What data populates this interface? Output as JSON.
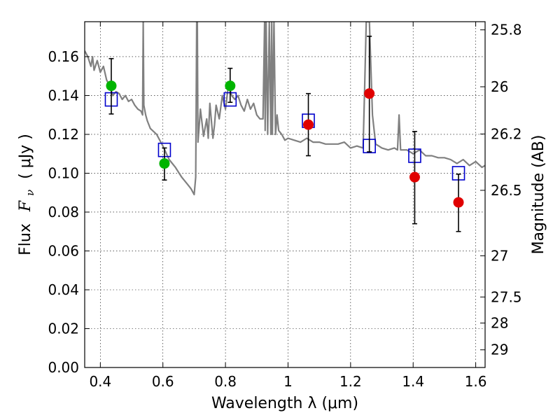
{
  "chart_data": {
    "type": "scatter",
    "xlabel": "Wavelength  λ (μm)",
    "ylabel": "Flux  F_ν  ( μJy )",
    "ylabel_parts": {
      "prefix": "Flux",
      "symbol": "F",
      "subscript": "ν",
      "unit": "( μJy )"
    },
    "y2label": "Magnitude (AB)",
    "xlim": [
      0.35,
      1.63
    ],
    "ylim": [
      0.0,
      0.178
    ],
    "x_ticks": [
      0.4,
      0.6,
      0.8,
      1.0,
      1.2,
      1.4,
      1.6
    ],
    "x_tick_labels": [
      "0.4",
      "0.6",
      "0.8",
      "1",
      "1.2",
      "1.4",
      "1.6"
    ],
    "y_ticks": [
      0.0,
      0.02,
      0.04,
      0.06,
      0.08,
      0.1,
      0.12,
      0.14,
      0.16
    ],
    "y_tick_labels": [
      "0.00",
      "0.02",
      "0.04",
      "0.06",
      "0.08",
      "0.10",
      "0.12",
      "0.14",
      "0.16"
    ],
    "y2_ticks": [
      {
        "flux": 0.1738,
        "label": "25.8"
      },
      {
        "flux": 0.1445,
        "label": "26"
      },
      {
        "flux": 0.1202,
        "label": "26.2"
      },
      {
        "flux": 0.0912,
        "label": "26.5"
      },
      {
        "flux": 0.0575,
        "label": "27"
      },
      {
        "flux": 0.0363,
        "label": "27.5"
      },
      {
        "flux": 0.0229,
        "label": "28"
      },
      {
        "flux": 0.0091,
        "label": "29"
      }
    ],
    "grid": true,
    "colors": {
      "model_line": "#808080",
      "model_points": "#0000cc",
      "green_points": "#00b400",
      "red_points": "#e00000",
      "error_bars": "#000000"
    },
    "series": [
      {
        "kind": "line",
        "x": [
          0.35,
          0.36,
          0.37,
          0.375,
          0.38,
          0.39,
          0.4,
          0.41,
          0.42,
          0.43,
          0.44,
          0.45,
          0.46,
          0.47,
          0.48,
          0.49,
          0.5,
          0.51,
          0.52,
          0.53,
          0.535,
          0.537,
          0.539,
          0.545,
          0.55,
          0.56,
          0.58,
          0.6,
          0.62,
          0.64,
          0.66,
          0.68,
          0.69,
          0.7,
          0.705,
          0.708,
          0.71,
          0.712,
          0.715,
          0.72,
          0.73,
          0.74,
          0.745,
          0.75,
          0.76,
          0.765,
          0.77,
          0.78,
          0.79,
          0.8,
          0.81,
          0.82,
          0.83,
          0.84,
          0.85,
          0.86,
          0.87,
          0.88,
          0.89,
          0.9,
          0.91,
          0.92,
          0.925,
          0.927,
          0.93,
          0.935,
          0.94,
          0.945,
          0.948,
          0.95,
          0.955,
          0.96,
          0.965,
          0.97,
          0.98,
          0.99,
          1.0,
          1.02,
          1.04,
          1.06,
          1.08,
          1.1,
          1.12,
          1.14,
          1.16,
          1.18,
          1.2,
          1.22,
          1.24,
          1.245,
          1.25,
          1.255,
          1.26,
          1.27,
          1.28,
          1.29,
          1.3,
          1.32,
          1.34,
          1.35,
          1.355,
          1.36,
          1.38,
          1.4,
          1.42,
          1.44,
          1.46,
          1.48,
          1.5,
          1.52,
          1.54,
          1.56,
          1.58,
          1.6,
          1.62,
          1.63
        ],
        "y": [
          0.163,
          0.16,
          0.155,
          0.16,
          0.153,
          0.158,
          0.152,
          0.155,
          0.148,
          0.145,
          0.14,
          0.142,
          0.141,
          0.138,
          0.14,
          0.137,
          0.138,
          0.135,
          0.133,
          0.132,
          0.13,
          0.178,
          0.135,
          0.13,
          0.127,
          0.123,
          0.12,
          0.114,
          0.107,
          0.103,
          0.098,
          0.094,
          0.092,
          0.089,
          0.098,
          0.178,
          0.178,
          0.116,
          0.122,
          0.133,
          0.119,
          0.128,
          0.118,
          0.136,
          0.118,
          0.125,
          0.135,
          0.128,
          0.14,
          0.133,
          0.146,
          0.14,
          0.138,
          0.14,
          0.135,
          0.132,
          0.138,
          0.133,
          0.136,
          0.13,
          0.128,
          0.128,
          0.178,
          0.122,
          0.178,
          0.12,
          0.178,
          0.12,
          0.178,
          0.12,
          0.178,
          0.12,
          0.13,
          0.122,
          0.12,
          0.117,
          0.118,
          0.117,
          0.116,
          0.118,
          0.116,
          0.116,
          0.115,
          0.115,
          0.115,
          0.116,
          0.113,
          0.114,
          0.113,
          0.145,
          0.178,
          0.178,
          0.178,
          0.13,
          0.115,
          0.114,
          0.113,
          0.112,
          0.113,
          0.112,
          0.13,
          0.112,
          0.112,
          0.11,
          0.112,
          0.109,
          0.109,
          0.108,
          0.108,
          0.107,
          0.105,
          0.107,
          0.104,
          0.106,
          0.103,
          0.104
        ]
      },
      {
        "kind": "squares",
        "x": [
          0.435,
          0.605,
          0.815,
          1.065,
          1.26,
          1.405,
          1.545
        ],
        "y": [
          0.138,
          0.112,
          0.138,
          0.127,
          0.114,
          0.109,
          0.1
        ]
      },
      {
        "kind": "points",
        "color": "green",
        "x": [
          0.435,
          0.605,
          0.815
        ],
        "y": [
          0.145,
          0.105,
          0.145
        ],
        "err": [
          [
            0.1305,
            0.159
          ],
          [
            0.0965,
            0.113
          ],
          [
            0.1365,
            0.154
          ]
        ]
      },
      {
        "kind": "points",
        "color": "red",
        "x": [
          1.065,
          1.26,
          1.405,
          1.545
        ],
        "y": [
          0.125,
          0.141,
          0.098,
          0.085
        ],
        "err": [
          [
            0.109,
            0.141
          ],
          [
            0.111,
            0.1705
          ],
          [
            0.074,
            0.1215
          ],
          [
            0.07,
            0.0995
          ]
        ]
      }
    ]
  }
}
